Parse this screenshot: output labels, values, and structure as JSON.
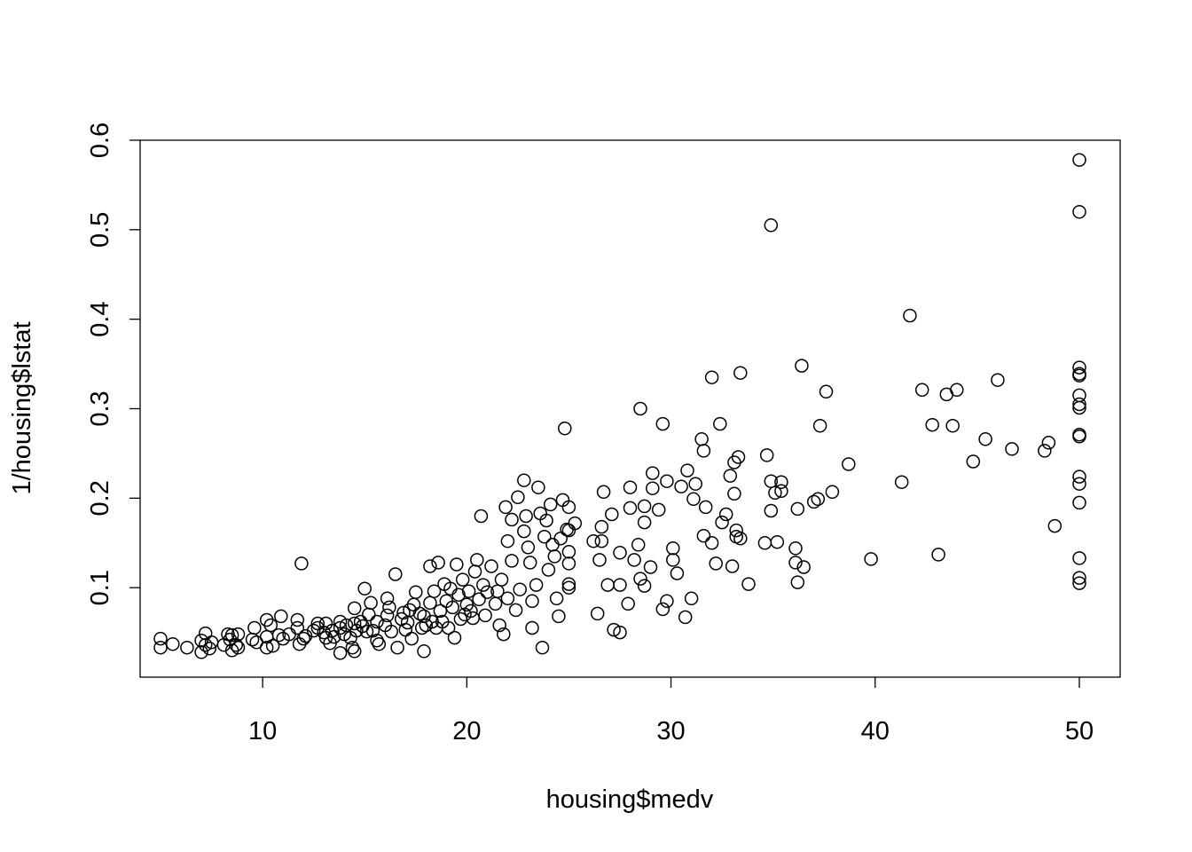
{
  "chart_data": {
    "type": "scatter",
    "xlabel": "housing$medv",
    "ylabel": "1/housing$lstat",
    "xlim": [
      4.0,
      52.0
    ],
    "ylim": [
      0.0,
      0.6
    ],
    "xticks": [
      10,
      20,
      30,
      40,
      50
    ],
    "yticks": [
      0.1,
      0.2,
      0.3,
      0.4,
      0.5,
      0.6
    ],
    "xtick_labels": [
      "10",
      "20",
      "30",
      "40",
      "50"
    ],
    "ytick_labels": [
      "0.1",
      "0.2",
      "0.3",
      "0.4",
      "0.5",
      "0.6"
    ],
    "grid": false,
    "legend": "none",
    "marker": "open-circle",
    "series": [
      {
        "points": [
          [
            5.0,
            0.043
          ],
          [
            5.0,
            0.033
          ],
          [
            5.6,
            0.037
          ],
          [
            6.3,
            0.033
          ],
          [
            7.0,
            0.041
          ],
          [
            7.0,
            0.028
          ],
          [
            7.2,
            0.036
          ],
          [
            7.2,
            0.049
          ],
          [
            7.4,
            0.032
          ],
          [
            7.5,
            0.039
          ],
          [
            8.1,
            0.036
          ],
          [
            8.3,
            0.048
          ],
          [
            8.4,
            0.042
          ],
          [
            8.5,
            0.03
          ],
          [
            8.5,
            0.047
          ],
          [
            8.7,
            0.036
          ],
          [
            8.8,
            0.048
          ],
          [
            8.8,
            0.033
          ],
          [
            9.5,
            0.042
          ],
          [
            9.6,
            0.055
          ],
          [
            9.7,
            0.039
          ],
          [
            10.2,
            0.064
          ],
          [
            10.2,
            0.045
          ],
          [
            10.2,
            0.033
          ],
          [
            10.4,
            0.058
          ],
          [
            10.5,
            0.035
          ],
          [
            10.8,
            0.047
          ],
          [
            10.9,
            0.068
          ],
          [
            11.0,
            0.043
          ],
          [
            11.3,
            0.048
          ],
          [
            11.7,
            0.064
          ],
          [
            11.7,
            0.055
          ],
          [
            11.8,
            0.037
          ],
          [
            11.9,
            0.127
          ],
          [
            12.0,
            0.043
          ],
          [
            12.1,
            0.046
          ],
          [
            12.5,
            0.052
          ],
          [
            12.7,
            0.06
          ],
          [
            12.7,
            0.055
          ],
          [
            13.0,
            0.05
          ],
          [
            13.1,
            0.044
          ],
          [
            13.1,
            0.06
          ],
          [
            13.3,
            0.038
          ],
          [
            13.4,
            0.052
          ],
          [
            13.5,
            0.045
          ],
          [
            13.8,
            0.027
          ],
          [
            13.8,
            0.062
          ],
          [
            13.8,
            0.055
          ],
          [
            14.0,
            0.048
          ],
          [
            14.1,
            0.058
          ],
          [
            14.3,
            0.044
          ],
          [
            14.4,
            0.033
          ],
          [
            14.5,
            0.029
          ],
          [
            14.5,
            0.06
          ],
          [
            14.5,
            0.077
          ],
          [
            14.6,
            0.052
          ],
          [
            14.8,
            0.062
          ],
          [
            14.9,
            0.057
          ],
          [
            15.0,
            0.099
          ],
          [
            15.1,
            0.051
          ],
          [
            15.2,
            0.07
          ],
          [
            15.3,
            0.083
          ],
          [
            15.4,
            0.052
          ],
          [
            15.6,
            0.062
          ],
          [
            15.6,
            0.041
          ],
          [
            15.7,
            0.037
          ],
          [
            16.0,
            0.058
          ],
          [
            16.1,
            0.088
          ],
          [
            16.1,
            0.069
          ],
          [
            16.2,
            0.078
          ],
          [
            16.3,
            0.051
          ],
          [
            16.5,
            0.115
          ],
          [
            16.6,
            0.033
          ],
          [
            16.8,
            0.065
          ],
          [
            16.9,
            0.072
          ],
          [
            17.0,
            0.053
          ],
          [
            17.1,
            0.061
          ],
          [
            17.2,
            0.075
          ],
          [
            17.3,
            0.043
          ],
          [
            17.4,
            0.081
          ],
          [
            17.5,
            0.095
          ],
          [
            17.7,
            0.071
          ],
          [
            17.8,
            0.055
          ],
          [
            17.9,
            0.029
          ],
          [
            17.9,
            0.068
          ],
          [
            18.0,
            0.058
          ],
          [
            18.2,
            0.124
          ],
          [
            18.2,
            0.083
          ],
          [
            18.3,
            0.062
          ],
          [
            18.4,
            0.096
          ],
          [
            18.5,
            0.055
          ],
          [
            18.6,
            0.128
          ],
          [
            18.7,
            0.074
          ],
          [
            18.8,
            0.062
          ],
          [
            18.9,
            0.104
          ],
          [
            19.0,
            0.085
          ],
          [
            19.1,
            0.055
          ],
          [
            19.2,
            0.099
          ],
          [
            19.3,
            0.078
          ],
          [
            19.4,
            0.044
          ],
          [
            19.5,
            0.126
          ],
          [
            19.6,
            0.092
          ],
          [
            19.7,
            0.065
          ],
          [
            19.8,
            0.109
          ],
          [
            19.9,
            0.07
          ],
          [
            20.0,
            0.081
          ],
          [
            20.1,
            0.096
          ],
          [
            20.2,
            0.074
          ],
          [
            20.3,
            0.066
          ],
          [
            20.4,
            0.118
          ],
          [
            20.5,
            0.131
          ],
          [
            20.6,
            0.087
          ],
          [
            20.7,
            0.18
          ],
          [
            20.8,
            0.103
          ],
          [
            20.9,
            0.069
          ],
          [
            21.0,
            0.095
          ],
          [
            21.2,
            0.124
          ],
          [
            21.4,
            0.082
          ],
          [
            21.5,
            0.096
          ],
          [
            21.6,
            0.058
          ],
          [
            21.7,
            0.109
          ],
          [
            21.8,
            0.048
          ],
          [
            21.9,
            0.19
          ],
          [
            22.0,
            0.152
          ],
          [
            22.0,
            0.088
          ],
          [
            22.2,
            0.13
          ],
          [
            22.2,
            0.176
          ],
          [
            22.4,
            0.075
          ],
          [
            22.5,
            0.201
          ],
          [
            22.6,
            0.098
          ],
          [
            22.8,
            0.22
          ],
          [
            22.8,
            0.163
          ],
          [
            22.9,
            0.18
          ],
          [
            23.0,
            0.145
          ],
          [
            23.1,
            0.128
          ],
          [
            23.2,
            0.085
          ],
          [
            23.2,
            0.055
          ],
          [
            23.4,
            0.103
          ],
          [
            23.5,
            0.212
          ],
          [
            23.6,
            0.183
          ],
          [
            23.7,
            0.033
          ],
          [
            23.8,
            0.157
          ],
          [
            23.9,
            0.175
          ],
          [
            24.0,
            0.12
          ],
          [
            24.1,
            0.193
          ],
          [
            24.2,
            0.148
          ],
          [
            24.3,
            0.135
          ],
          [
            24.4,
            0.088
          ],
          [
            24.5,
            0.068
          ],
          [
            24.6,
            0.155
          ],
          [
            24.7,
            0.198
          ],
          [
            24.8,
            0.278
          ],
          [
            24.9,
            0.165
          ],
          [
            25.0,
            0.104
          ],
          [
            25.0,
            0.127
          ],
          [
            25.0,
            0.14
          ],
          [
            25.0,
            0.164
          ],
          [
            25.0,
            0.19
          ],
          [
            25.0,
            0.1
          ],
          [
            25.3,
            0.172
          ],
          [
            26.2,
            0.152
          ],
          [
            26.4,
            0.071
          ],
          [
            26.5,
            0.131
          ],
          [
            26.6,
            0.152
          ],
          [
            26.6,
            0.168
          ],
          [
            26.7,
            0.207
          ],
          [
            26.9,
            0.103
          ],
          [
            27.1,
            0.182
          ],
          [
            27.2,
            0.053
          ],
          [
            27.5,
            0.139
          ],
          [
            27.5,
            0.103
          ],
          [
            27.5,
            0.05
          ],
          [
            27.9,
            0.082
          ],
          [
            28.0,
            0.189
          ],
          [
            28.0,
            0.212
          ],
          [
            28.2,
            0.131
          ],
          [
            28.4,
            0.148
          ],
          [
            28.5,
            0.11
          ],
          [
            28.5,
            0.3
          ],
          [
            28.7,
            0.191
          ],
          [
            28.7,
            0.173
          ],
          [
            28.7,
            0.102
          ],
          [
            29.0,
            0.123
          ],
          [
            29.1,
            0.211
          ],
          [
            29.1,
            0.228
          ],
          [
            29.4,
            0.187
          ],
          [
            29.6,
            0.283
          ],
          [
            29.6,
            0.076
          ],
          [
            29.8,
            0.085
          ],
          [
            29.8,
            0.219
          ],
          [
            30.1,
            0.144
          ],
          [
            30.1,
            0.131
          ],
          [
            30.3,
            0.116
          ],
          [
            30.5,
            0.213
          ],
          [
            30.7,
            0.067
          ],
          [
            30.8,
            0.231
          ],
          [
            31.0,
            0.088
          ],
          [
            31.1,
            0.199
          ],
          [
            31.2,
            0.216
          ],
          [
            31.5,
            0.266
          ],
          [
            31.6,
            0.253
          ],
          [
            31.6,
            0.158
          ],
          [
            31.7,
            0.19
          ],
          [
            32.0,
            0.15
          ],
          [
            32.0,
            0.335
          ],
          [
            32.2,
            0.127
          ],
          [
            32.4,
            0.283
          ],
          [
            32.5,
            0.173
          ],
          [
            32.7,
            0.182
          ],
          [
            32.9,
            0.225
          ],
          [
            33.0,
            0.124
          ],
          [
            33.1,
            0.205
          ],
          [
            33.1,
            0.24
          ],
          [
            33.2,
            0.164
          ],
          [
            33.2,
            0.157
          ],
          [
            33.3,
            0.246
          ],
          [
            33.4,
            0.34
          ],
          [
            33.4,
            0.155
          ],
          [
            33.8,
            0.104
          ],
          [
            34.6,
            0.15
          ],
          [
            34.7,
            0.248
          ],
          [
            34.9,
            0.186
          ],
          [
            34.9,
            0.219
          ],
          [
            34.9,
            0.505
          ],
          [
            35.1,
            0.206
          ],
          [
            35.2,
            0.151
          ],
          [
            35.4,
            0.208
          ],
          [
            35.4,
            0.218
          ],
          [
            36.1,
            0.128
          ],
          [
            36.1,
            0.144
          ],
          [
            36.2,
            0.106
          ],
          [
            36.2,
            0.188
          ],
          [
            36.4,
            0.348
          ],
          [
            36.5,
            0.123
          ],
          [
            37.0,
            0.196
          ],
          [
            37.2,
            0.199
          ],
          [
            37.3,
            0.281
          ],
          [
            37.6,
            0.319
          ],
          [
            37.9,
            0.207
          ],
          [
            38.7,
            0.238
          ],
          [
            39.8,
            0.132
          ],
          [
            41.3,
            0.218
          ],
          [
            41.7,
            0.404
          ],
          [
            42.3,
            0.321
          ],
          [
            42.8,
            0.282
          ],
          [
            43.1,
            0.137
          ],
          [
            43.5,
            0.316
          ],
          [
            43.8,
            0.281
          ],
          [
            44.0,
            0.321
          ],
          [
            44.8,
            0.241
          ],
          [
            46.0,
            0.332
          ],
          [
            45.4,
            0.266
          ],
          [
            46.7,
            0.255
          ],
          [
            48.3,
            0.253
          ],
          [
            48.5,
            0.262
          ],
          [
            48.8,
            0.169
          ],
          [
            50.0,
            0.578
          ],
          [
            50.0,
            0.52
          ],
          [
            50.0,
            0.346
          ],
          [
            50.0,
            0.337
          ],
          [
            50.0,
            0.339
          ],
          [
            50.0,
            0.315
          ],
          [
            50.0,
            0.305
          ],
          [
            50.0,
            0.301
          ],
          [
            50.0,
            0.271
          ],
          [
            50.0,
            0.269
          ],
          [
            50.0,
            0.224
          ],
          [
            50.0,
            0.216
          ],
          [
            50.0,
            0.195
          ],
          [
            50.0,
            0.133
          ],
          [
            50.0,
            0.111
          ],
          [
            50.0,
            0.105
          ]
        ]
      }
    ]
  }
}
